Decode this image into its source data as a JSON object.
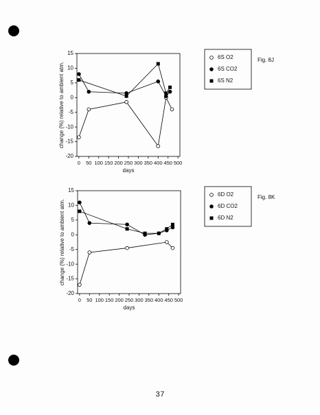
{
  "chart_data": [
    {
      "type": "line",
      "figure_label": "Fig. 8J",
      "x_label": "days",
      "y_label": "change (%) relative to ambient atm.",
      "xlim": [
        -10,
        510
      ],
      "xticks": [
        0,
        50,
        100,
        150,
        200,
        250,
        300,
        350,
        400,
        450,
        500
      ],
      "ylim": [
        -20,
        15
      ],
      "yticks": [
        -20,
        -15,
        -10,
        -5,
        0,
        5,
        10,
        15
      ],
      "series": [
        {
          "name": "6S O2",
          "marker": "open-circle",
          "color": "#000000",
          "x": [
            0,
            50,
            240,
            400,
            440,
            470
          ],
          "values": [
            -13.5,
            -4,
            -1.5,
            -16.5,
            0,
            -4
          ]
        },
        {
          "name": "6S CO2",
          "marker": "circle",
          "color": "#000000",
          "x": [
            0,
            50,
            240,
            400,
            440,
            460
          ],
          "values": [
            8,
            2,
            1.5,
            5.5,
            0.5,
            2
          ]
        },
        {
          "name": "6S N2",
          "marker": "square",
          "color": "#000000",
          "x": [
            0,
            240,
            400,
            440,
            460
          ],
          "values": [
            6,
            0.5,
            11.5,
            1.5,
            3.5
          ]
        }
      ]
    },
    {
      "type": "line",
      "figure_label": "Fig. 8K",
      "x_label": "days",
      "y_label": "change (%) relative to ambient atm.",
      "xlim": [
        -10,
        510
      ],
      "xticks": [
        0,
        50,
        100,
        150,
        200,
        250,
        300,
        350,
        400,
        450,
        500
      ],
      "ylim": [
        -20,
        15
      ],
      "yticks": [
        -20,
        -15,
        -10,
        -5,
        0,
        5,
        10,
        15
      ],
      "series": [
        {
          "name": "6D O2",
          "marker": "open-circle",
          "color": "#000000",
          "x": [
            0,
            50,
            240,
            440,
            470
          ],
          "values": [
            -17,
            -6,
            -4.5,
            -2.5,
            -4.5
          ]
        },
        {
          "name": "6D CO2",
          "marker": "circle",
          "color": "#000000",
          "x": [
            0,
            50,
            240,
            330,
            400,
            440,
            470
          ],
          "values": [
            11,
            4,
            3.5,
            0,
            0.5,
            1.5,
            2.5
          ]
        },
        {
          "name": "6D N2",
          "marker": "square",
          "color": "#000000",
          "x": [
            0,
            240,
            330,
            400,
            440,
            470
          ],
          "values": [
            8,
            2,
            0.5,
            0.5,
            2,
            3.5
          ]
        }
      ]
    }
  ],
  "page_number": "37"
}
